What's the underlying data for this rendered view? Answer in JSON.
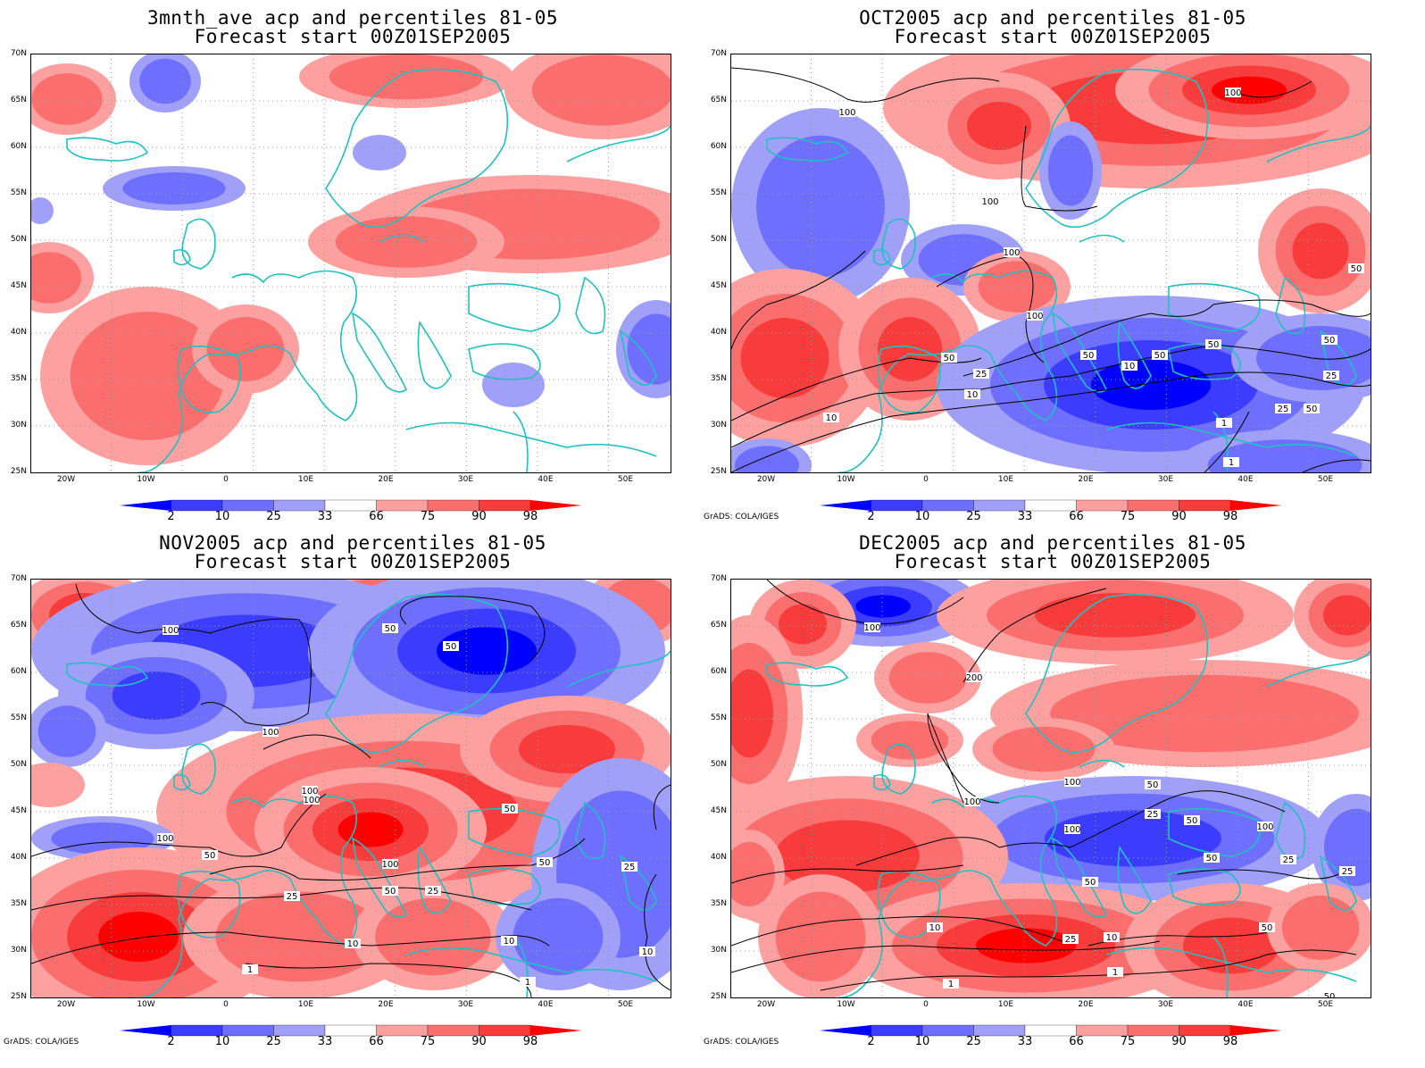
{
  "panels": [
    {
      "title_line1": "3mnth_ave acp and percentiles 81-05",
      "title_line2": "Forecast start 00Z01SEP2005",
      "credit": ""
    },
    {
      "title_line1": "OCT2005 acp and percentiles 81-05",
      "title_line2": "Forecast start 00Z01SEP2005",
      "credit": "GrADS: COLA/IGES"
    },
    {
      "title_line1": "NOV2005 acp and percentiles 81-05",
      "title_line2": "Forecast start 00Z01SEP2005",
      "credit": "GrADS: COLA/IGES"
    },
    {
      "title_line1": "DEC2005 acp and percentiles 81-05",
      "title_line2": "Forecast start 00Z01SEP2005",
      "credit": "GrADS: COLA/IGES"
    }
  ],
  "lat_labels": [
    "70N",
    "65N",
    "60N",
    "55N",
    "50N",
    "45N",
    "40N",
    "35N",
    "30N",
    "25N"
  ],
  "lon_labels": [
    "20W",
    "10W",
    "0",
    "10E",
    "20E",
    "30E",
    "40E",
    "50E"
  ],
  "colorbar_labels": [
    "2",
    "10",
    "25",
    "33",
    "66",
    "75",
    "90",
    "98"
  ],
  "colorbar_colors": [
    "#0000ff",
    "#3c3cff",
    "#6e6eff",
    "#a0a0f8",
    "#ffffff",
    "#fca0a0",
    "#fa6e6e",
    "#f83c3c",
    "#ff0000"
  ],
  "colors": {
    "coast": "#20c0c0",
    "contour": "#000000",
    "grid": "#999999"
  },
  "contour_labels": {
    "oct": [
      "100",
      "100",
      "100",
      "100",
      "100",
      "50",
      "50",
      "50",
      "50",
      "50",
      "25",
      "25",
      "25",
      "10",
      "10",
      "10",
      "1",
      "1",
      "50",
      "50"
    ],
    "nov": [
      "100",
      "50",
      "50",
      "100",
      "100",
      "100",
      "100",
      "50",
      "50",
      "50",
      "25",
      "25",
      "10",
      "10",
      "1",
      "1",
      "100",
      "50",
      "25",
      "10"
    ],
    "dec": [
      "100",
      "200",
      "100",
      "100",
      "100",
      "50",
      "50",
      "25",
      "50",
      "100",
      "25",
      "50",
      "10",
      "25",
      "10",
      "1",
      "1",
      "50",
      "25",
      "50"
    ]
  }
}
